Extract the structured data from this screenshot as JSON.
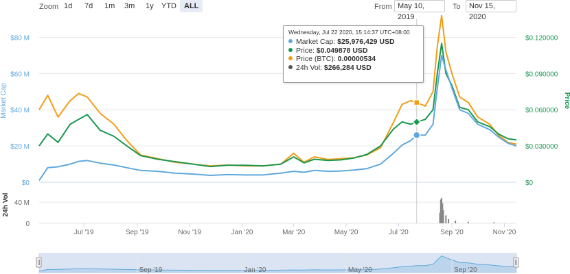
{
  "toolbar": {
    "zoom_label": "Zoom",
    "zoom_buttons": [
      "1d",
      "7d",
      "1m",
      "3m",
      "1y",
      "YTD",
      "ALL"
    ],
    "active_zoom": "ALL",
    "from_label": "From",
    "from_value": "May 10, 2019",
    "to_label": "To",
    "to_value": "Nov 15, 2020"
  },
  "tooltip": {
    "header": "Wednesday, Jul 22 2020, 15:14:37 UTC+08:00",
    "rows": [
      {
        "label": "Market Cap:",
        "value": "$25,976,429 USD",
        "color": "#5fa8dc"
      },
      {
        "label": "Price:",
        "value": "$0.049878 USD",
        "color": "#1a9850"
      },
      {
        "label": "Price (BTC):",
        "value": "0.00000534",
        "color": "#f29d17"
      },
      {
        "label": "24h Vol:",
        "value": "$266,284 USD",
        "color": "#555555"
      }
    ]
  },
  "colors": {
    "market_cap": "#5fa8dc",
    "price": "#1a9850",
    "price_btc": "#f29d17",
    "volume": "#888888",
    "navigator_fill": "#dbe4f3"
  },
  "chart_data": {
    "type": "line",
    "x_ticks": [
      "Jul '19",
      "Sep '19",
      "Nov '19",
      "Jan '20",
      "Mar '20",
      "May '20",
      "Jul '20",
      "Sep '20",
      "Nov '20"
    ],
    "navigator_ticks": [
      "Sep '19",
      "Jan '20",
      "May '20",
      "Sep '20"
    ],
    "left_axis": {
      "label": "Market Cap",
      "ticks": [
        "$0",
        "$20 M",
        "$40 M",
        "$60 M",
        "$80 M"
      ],
      "ylim": [
        0,
        90000000
      ]
    },
    "right_axis": {
      "label": "Price",
      "ticks": [
        "$0",
        "$0.030000",
        "$0.060000",
        "$0.090000",
        "$0.120000"
      ],
      "ylim": [
        0,
        0.135
      ]
    },
    "volume_axis": {
      "label": "24h Vol",
      "ticks": [
        "0",
        "40 M"
      ],
      "ylim": [
        0,
        70000000
      ]
    },
    "x": [
      "2019-05-10",
      "2019-05-20",
      "2019-06-01",
      "2019-06-15",
      "2019-06-25",
      "2019-07-05",
      "2019-07-20",
      "2019-08-05",
      "2019-08-20",
      "2019-09-05",
      "2019-09-25",
      "2019-10-15",
      "2019-11-05",
      "2019-11-25",
      "2019-12-15",
      "2020-01-05",
      "2020-01-25",
      "2020-02-15",
      "2020-03-01",
      "2020-03-13",
      "2020-03-25",
      "2020-04-10",
      "2020-04-25",
      "2020-05-10",
      "2020-05-25",
      "2020-06-10",
      "2020-06-25",
      "2020-07-05",
      "2020-07-15",
      "2020-07-22",
      "2020-08-01",
      "2020-08-10",
      "2020-08-15",
      "2020-08-20",
      "2020-08-25",
      "2020-09-01",
      "2020-09-10",
      "2020-09-20",
      "2020-10-01",
      "2020-10-15",
      "2020-10-25",
      "2020-11-05",
      "2020-11-15"
    ],
    "series": [
      {
        "name": "Market Cap",
        "axis": "left",
        "values": [
          1000000,
          8000000,
          8500000,
          10000000,
          11500000,
          12000000,
          10500000,
          9500000,
          8000000,
          6500000,
          6000000,
          5000000,
          4500000,
          3800000,
          4200000,
          4000000,
          4000000,
          5000000,
          6000000,
          5500000,
          6500000,
          6000000,
          6200000,
          6700000,
          7500000,
          10000000,
          16000000,
          20500000,
          23000000,
          25976429,
          26000000,
          32000000,
          52000000,
          70000000,
          62000000,
          52000000,
          40000000,
          38000000,
          32000000,
          29000000,
          25000000,
          21500000,
          20000000
        ]
      },
      {
        "name": "Price",
        "axis": "right",
        "values": [
          0.03,
          0.04,
          0.033,
          0.048,
          0.052,
          0.056,
          0.043,
          0.038,
          0.03,
          0.022,
          0.019,
          0.017,
          0.015,
          0.013,
          0.014,
          0.014,
          0.0135,
          0.015,
          0.021,
          0.016,
          0.019,
          0.018,
          0.0185,
          0.02,
          0.023,
          0.03,
          0.044,
          0.05,
          0.048,
          0.049878,
          0.052,
          0.06,
          0.09,
          0.115,
          0.09,
          0.08,
          0.062,
          0.06,
          0.05,
          0.046,
          0.04,
          0.036,
          0.035
        ]
      },
      {
        "name": "Price (BTC)",
        "axis": "left",
        "values": [
          40000000,
          48000000,
          36000000,
          45000000,
          49000000,
          47000000,
          38000000,
          32000000,
          23000000,
          15000000,
          13000000,
          11000000,
          10000000,
          9000000,
          9500000,
          9000000,
          9000000,
          10000000,
          16000000,
          11000000,
          14000000,
          12500000,
          13000000,
          13500000,
          15000000,
          19000000,
          33000000,
          43000000,
          45000000,
          44000000,
          42000000,
          50000000,
          75000000,
          92000000,
          72000000,
          60000000,
          47000000,
          44000000,
          36000000,
          32000000,
          26000000,
          22000000,
          21000000
        ]
      }
    ],
    "volume": {
      "x": [
        "2020-08-18",
        "2020-08-19",
        "2020-08-20",
        "2020-08-21",
        "2020-08-22",
        "2020-08-25",
        "2020-08-28",
        "2020-09-05",
        "2020-09-20",
        "2020-10-20"
      ],
      "values": [
        20000000,
        45000000,
        48000000,
        38000000,
        25000000,
        15000000,
        8000000,
        5000000,
        3000000,
        2000000
      ]
    },
    "hover_x": "2020-07-22"
  }
}
